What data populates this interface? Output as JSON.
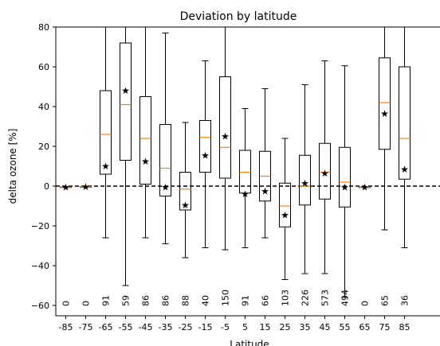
{
  "chart_data": {
    "type": "box",
    "title": "Deviation by latitude",
    "xlabel": "Latitude",
    "ylabel": "delta ozone [%]",
    "ylim": [
      -65,
      80
    ],
    "yticks": [
      -60,
      -40,
      -20,
      0,
      20,
      40,
      60,
      80
    ],
    "xlim": [
      -90,
      90
    ],
    "reference_line": 0,
    "grid": false,
    "colors": {
      "median": "#ff7f0e",
      "box": "#000000",
      "mean_marker": "#000000",
      "zero_line": "#000000"
    },
    "boxes": [
      {
        "lat": -85,
        "count": "0",
        "whislo": -0.5,
        "q1": -0.5,
        "med": -0.5,
        "q3": -0.5,
        "whishi": -0.5,
        "mean": -0.5
      },
      {
        "lat": -75,
        "count": "0",
        "whislo": -0.3,
        "q1": -0.3,
        "med": -0.3,
        "q3": -0.3,
        "whishi": -0.3,
        "mean": -0.3
      },
      {
        "lat": -65,
        "count": "91",
        "whislo": -26,
        "q1": 6,
        "med": 26,
        "q3": 48,
        "whishi": 100,
        "mean": 10
      },
      {
        "lat": -55,
        "count": "59",
        "whislo": -50,
        "q1": 13,
        "med": 41,
        "q3": 72,
        "whishi": 100,
        "mean": 48
      },
      {
        "lat": -45,
        "count": "86",
        "whislo": -26,
        "q1": 1,
        "med": 24,
        "q3": 45,
        "whishi": 100,
        "mean": 12.5
      },
      {
        "lat": -35,
        "count": "86",
        "whislo": -29,
        "q1": -5,
        "med": 9,
        "q3": 31,
        "whishi": 77,
        "mean": -0.5
      },
      {
        "lat": -25,
        "count": "88",
        "whislo": -36,
        "q1": -12,
        "med": -1.5,
        "q3": 7,
        "whishi": 32,
        "mean": -9.5
      },
      {
        "lat": -15,
        "count": "40",
        "whislo": -31,
        "q1": 7,
        "med": 24.5,
        "q3": 33,
        "whishi": 63,
        "mean": 15.5
      },
      {
        "lat": -5,
        "count": "150",
        "whislo": -32,
        "q1": 4,
        "med": 19.5,
        "q3": 55,
        "whishi": 100,
        "mean": 25
      },
      {
        "lat": 5,
        "count": "91",
        "whislo": -31,
        "q1": -3.5,
        "med": 7,
        "q3": 18,
        "whishi": 39,
        "mean": -4
      },
      {
        "lat": 15,
        "count": "66",
        "whislo": -26,
        "q1": -7.5,
        "med": 5,
        "q3": 17.5,
        "whishi": 49,
        "mean": -2.5
      },
      {
        "lat": 25,
        "count": "103",
        "whislo": -47,
        "q1": -20.5,
        "med": -10,
        "q3": 1.5,
        "whishi": 24,
        "mean": -14.5
      },
      {
        "lat": 35,
        "count": "226",
        "whislo": -44,
        "q1": -9.5,
        "med": 0,
        "q3": 15.5,
        "whishi": 51,
        "mean": 1.5
      },
      {
        "lat": 45,
        "count": "573",
        "whislo": -44,
        "q1": -6.5,
        "med": 7,
        "q3": 21.5,
        "whishi": 63,
        "mean": 6.5
      },
      {
        "lat": 55,
        "count": "494",
        "whislo": -56,
        "q1": -10.5,
        "med": 2,
        "q3": 19.5,
        "whishi": 60.5,
        "mean": -0.5
      },
      {
        "lat": 65,
        "count": "0",
        "whislo": -0.5,
        "q1": -0.5,
        "med": -0.5,
        "q3": -0.5,
        "whishi": -0.5,
        "mean": -0.5
      },
      {
        "lat": 75,
        "count": "65",
        "whislo": -22,
        "q1": 18.5,
        "med": 42,
        "q3": 64.5,
        "whishi": 100,
        "mean": 36.5
      },
      {
        "lat": 85,
        "count": "36",
        "whislo": -31,
        "q1": 3.5,
        "med": 24,
        "q3": 60,
        "whishi": 100,
        "mean": 8.5
      }
    ]
  }
}
